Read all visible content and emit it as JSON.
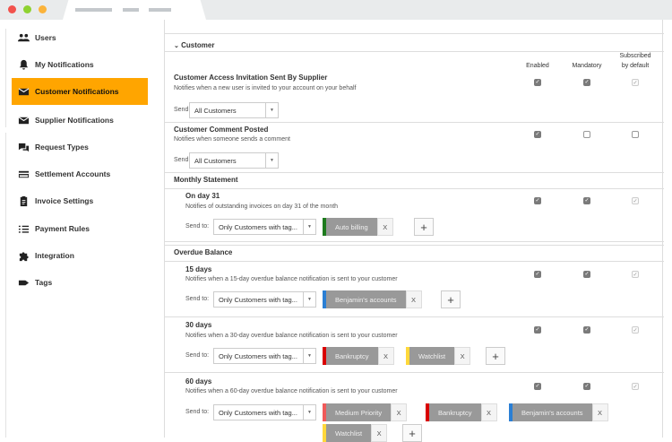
{
  "window": {
    "colors": {
      "close": "#f2524c",
      "minimize": "#8ed230",
      "maximize": "#fbb33a"
    }
  },
  "sidebar": {
    "items": [
      {
        "label": "Users",
        "icon": "users-icon"
      },
      {
        "label": "My Notifications",
        "icon": "bell-icon"
      },
      {
        "label": "Customer Notifications",
        "icon": "envelope-icon",
        "active": true
      },
      {
        "label": "Supplier Notifications",
        "icon": "envelope-icon"
      },
      {
        "label": "Request Types",
        "icon": "chat-icon"
      },
      {
        "label": "Settlement Accounts",
        "icon": "credit-card-icon"
      },
      {
        "label": "Invoice Settings",
        "icon": "clipboard-icon"
      },
      {
        "label": "Payment Rules",
        "icon": "list-icon"
      },
      {
        "label": "Integration",
        "icon": "puzzle-icon"
      },
      {
        "label": "Tags",
        "icon": "tag-icon"
      }
    ],
    "active_color": "#ffa500"
  },
  "main": {
    "section_title": "Customer",
    "columns": {
      "enabled": "Enabled",
      "mandatory": "Mandatory",
      "subscribed_1": "Subscribed",
      "subscribed_2": "by default"
    },
    "send_to_label": "Send to:",
    "groups": {
      "monthly": "Monthly Statement",
      "overdue": "Overdue Balance"
    },
    "notifications": [
      {
        "title": "Customer Access Invitation Sent By Supplier",
        "desc": "Notifies when a new user is invited to your account on your behalf",
        "send_to": "All Customers",
        "enabled": true,
        "mandatory": true,
        "subscribed": true,
        "tags": []
      },
      {
        "title": "Customer Comment Posted",
        "desc": "Notifies when someone sends a comment",
        "send_to": "All Customers",
        "enabled": true,
        "mandatory": false,
        "subscribed": false,
        "tags": []
      },
      {
        "title": "On day 31",
        "desc": "Notifies of outstanding invoices on day 31 of the month",
        "send_to": "Only Customers with tag...",
        "enabled": true,
        "mandatory": true,
        "subscribed": true,
        "tags": [
          {
            "label": "Auto billing",
            "color": "#1e7b1e"
          }
        ]
      },
      {
        "title": "15 days",
        "desc": "Notifies when a 15-day overdue balance notification is sent to your customer",
        "send_to": "Only Customers with tag...",
        "enabled": true,
        "mandatory": true,
        "subscribed": true,
        "tags": [
          {
            "label": "Benjamin's accounts",
            "color": "#2b7fd4"
          }
        ]
      },
      {
        "title": "30 days",
        "desc": "Notifies when a 30-day overdue balance notification is sent to your customer",
        "send_to": "Only Customers with tag...",
        "enabled": true,
        "mandatory": true,
        "subscribed": true,
        "tags": [
          {
            "label": "Bankruptcy",
            "color": "#d90000"
          },
          {
            "label": "Watchlist",
            "color": "#ffd83b"
          }
        ]
      },
      {
        "title": "60 days",
        "desc": "Notifies when a 60-day overdue balance notification is sent to your customer",
        "send_to": "Only Customers with tag...",
        "enabled": true,
        "mandatory": true,
        "subscribed": true,
        "tags": [
          {
            "label": "Medium Priority",
            "color": "#f05a5a"
          },
          {
            "label": "Bankruptcy",
            "color": "#d90000"
          },
          {
            "label": "Benjamin's accounts",
            "color": "#2b7fd4"
          },
          {
            "label": "Watchlist",
            "color": "#ffd83b"
          }
        ]
      }
    ],
    "tag_remove": "X",
    "tag_add": "+"
  }
}
